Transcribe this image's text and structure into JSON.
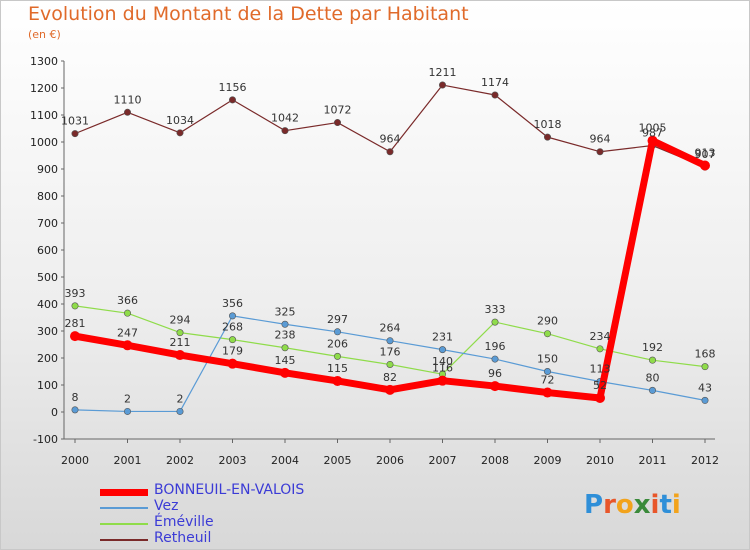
{
  "title": "Evolution du Montant de la Dette par Habitant",
  "subtitle": "(en €)",
  "logo": "Proxiti",
  "chart_data": {
    "type": "line",
    "x": [
      "2000",
      "2001",
      "2002",
      "2003",
      "2004",
      "2005",
      "2006",
      "2007",
      "2008",
      "2009",
      "2010",
      "2011",
      "2012"
    ],
    "ylim": [
      -100,
      1300
    ],
    "yticks": [
      -100,
      0,
      100,
      200,
      300,
      400,
      500,
      600,
      700,
      800,
      900,
      1000,
      1100,
      1200,
      1300
    ],
    "grid": false,
    "legend_position": "bottom-left",
    "series": [
      {
        "name": "BONNEUIL-EN-VALOIS",
        "color": "#ff0000",
        "values": [
          281,
          247,
          211,
          179,
          145,
          115,
          82,
          116,
          96,
          72,
          52,
          1005,
          913
        ]
      },
      {
        "name": "Vez",
        "color": "#5a9bd5",
        "values": [
          8,
          2,
          2,
          356,
          325,
          297,
          264,
          231,
          196,
          150,
          113,
          80,
          43
        ]
      },
      {
        "name": "Éméville",
        "color": "#8fdc4a",
        "values": [
          393,
          366,
          294,
          268,
          238,
          206,
          176,
          140,
          333,
          290,
          234,
          192,
          168
        ]
      },
      {
        "name": "Retheuil",
        "color": "#7a2a2a",
        "values": [
          1031,
          1110,
          1034,
          1156,
          1042,
          1072,
          964,
          1211,
          1174,
          1018,
          964,
          987,
          907
        ]
      }
    ]
  }
}
